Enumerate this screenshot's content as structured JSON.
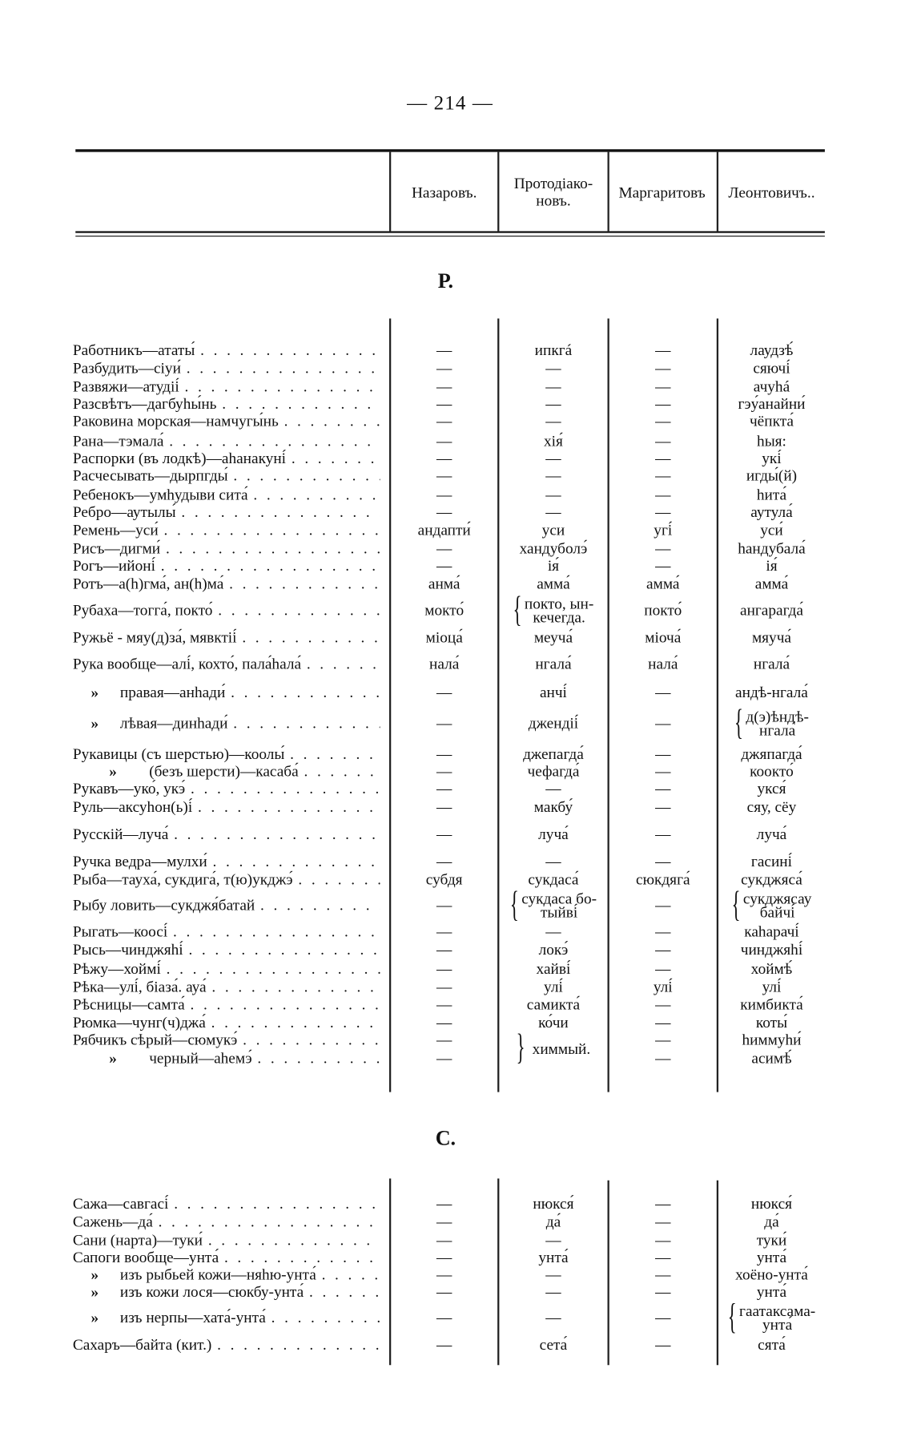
{
  "page_number": "— 214 —",
  "columns": [
    "Назаровъ.",
    "Протодіако-\nновъ.",
    "Маргаритовъ",
    "Леонтовичъ.."
  ],
  "sections": [
    {
      "letter": "Р.",
      "rows": [
        {
          "term": "Работникъ—ататы́",
          "cols": [
            "—",
            "ипкгá",
            "—",
            "лаудзѣ́"
          ]
        },
        {
          "term": "Разбудить—сіуи́",
          "cols": [
            "—",
            "—",
            "—",
            "сяючі́"
          ]
        },
        {
          "term": "Развяжи—атудіі́",
          "cols": [
            "—",
            "—",
            "—",
            "ачуhá"
          ]
        },
        {
          "term": "Разсвѣтъ—дагбуhы́нь",
          "cols": [
            "—",
            "—",
            "—",
            "гэу́анайни́"
          ]
        },
        {
          "term": "Раковина морская—намчугы́нь",
          "cols": [
            "—",
            "—",
            "—",
            "чёпкта́"
          ]
        },
        {
          "term": "Рана—тэмала́",
          "cols": [
            "—",
            "хія́",
            "—",
            "hыя:"
          ]
        },
        {
          "term": "Распорки (въ лодкѣ)—аhанакуні́",
          "cols": [
            "—",
            "—",
            "—",
            "укі́"
          ]
        },
        {
          "term": "Расчесывать—дырпгды́",
          "cols": [
            "—",
            "—",
            "—",
            "игды́(й)"
          ]
        },
        {
          "term": "Ребенокъ—умhудыви сита́",
          "cols": [
            "—",
            "—",
            "—",
            "hита́"
          ]
        },
        {
          "term": "Ребро—аутылы́",
          "cols": [
            "—",
            "—",
            "—",
            "аутула́"
          ]
        },
        {
          "term": "Ремень—уси́",
          "cols": [
            "андапти́",
            "уси",
            "угі́",
            "уси́"
          ]
        },
        {
          "term": "Рисъ—дигми́",
          "cols": [
            "—",
            "хандуболэ́",
            "—",
            "hандубала́"
          ]
        },
        {
          "term": "Рогъ—ийоні́",
          "cols": [
            "—",
            "ія́",
            "—",
            "ія́"
          ]
        },
        {
          "term": "Ротъ—а(h)гма́, ан(h)ма́",
          "cols": [
            "анма́",
            "амма́",
            "амма́",
            "амма́"
          ]
        },
        {
          "term": "Рубаха—тогга́, покто́",
          "cols": [
            "мокто́",
            {
              "brace": "{",
              "lines": [
                "покто, ын-",
                "кечегда."
              ]
            },
            "покто́",
            "ангарагда́"
          ]
        },
        {
          "term": "Ружьё - мяу(д)за́, мявктіі́",
          "cols": [
            "міоца́",
            "меуча́",
            "міоча́",
            "мяуча́"
          ]
        },
        {
          "term": "Рука вообще—алі́, кохто́, пала́hала́",
          "cols": [
            "нала́",
            "нгала́",
            "нала́",
            "нгала́"
          ]
        },
        {
          "ditto": "»",
          "kind": "sub",
          "term": "правая—анhади́",
          "cols": [
            "—",
            "анчі́",
            "—",
            "андѣ-нгала́"
          ]
        },
        {
          "ditto": "»",
          "kind": "sub",
          "term": "лѣвая—динhади́",
          "cols": [
            "—",
            "джендіі́",
            "—",
            {
              "brace": "{",
              "lines": [
                "д(э)ѣндѣ-",
                "нгала́"
              ]
            }
          ]
        },
        {
          "term": "Рукавицы (съ шерстью)—коолы́",
          "cols": [
            "—",
            "джепагда́",
            "—",
            "джяпагда́"
          ]
        },
        {
          "ditto": "»",
          "kind": "sub2",
          "term": "(безъ шерсти)—касаба́",
          "cols": [
            "—",
            "чефагда́",
            "—",
            "коокто́"
          ]
        },
        {
          "term": "Рукавъ—уко́, укэ́",
          "cols": [
            "—",
            "—",
            "—",
            "укся́"
          ]
        },
        {
          "term": "Руль—аксуhон(ь)і́",
          "cols": [
            "—",
            "макбу́",
            "—",
            "сяу, сёу"
          ]
        },
        {
          "term": "Русскій—луча́",
          "cols": [
            "—",
            "луча́",
            "—",
            "луча́"
          ]
        },
        {
          "term": "Ручка ведра—мулхи́",
          "cols": [
            "—",
            "—",
            "—",
            "гасині́"
          ]
        },
        {
          "term": "Рыба—тауха́, сукдига́, т(ю)укджэ́",
          "cols": [
            "субдя",
            "сукдаса́",
            "сюкдяга́",
            "сукджяса́"
          ]
        },
        {
          "term": "Рыбу ловить—сукджя́батай",
          "cols": [
            "—",
            {
              "brace": "{",
              "lines": [
                "сукдаса бо-",
                "тыйві́"
              ]
            },
            "—",
            {
              "brace": "{",
              "lines": [
                "сукджясау",
                "байчі́"
              ]
            }
          ]
        },
        {
          "term": "Рыгать—коосі́",
          "cols": [
            "—",
            "—",
            "—",
            "каhарачі́"
          ]
        },
        {
          "term": "Рысь—чинджяhі́",
          "cols": [
            "—",
            "локэ́",
            "—",
            "чинджяhі́"
          ]
        },
        {
          "term": "Рѣжу—хоймі́",
          "cols": [
            "—",
            "хайві́",
            "—",
            "хоймѣ́"
          ]
        },
        {
          "term": "Рѣка—улі́, біаза́. ауа́",
          "cols": [
            "—",
            "улі́",
            "улі́",
            "улі́"
          ]
        },
        {
          "term": "Рѣсницы—самта́",
          "cols": [
            "—",
            "самикта́",
            "—",
            "кимбикта́"
          ]
        },
        {
          "term": "Рюмка—чунг(ч)джа́",
          "cols": [
            "—",
            "ко́чи",
            "—",
            "коты́"
          ]
        },
        {
          "term": "Рябчикъ сѣрый—сюмукэ́",
          "cols": [
            "—",
            {
              "brace": "}",
              "lines": [
                "химмый."
              ],
              "span": 2
            },
            "—",
            "hиммуhи́"
          ]
        },
        {
          "ditto": "»",
          "kind": "sub2",
          "term": "черный—аhемэ́",
          "cols": [
            "—",
            null,
            "—",
            "асимѣ́"
          ]
        }
      ]
    },
    {
      "letter": "С.",
      "rows": [
        {
          "term": "Сажа—савгасі́",
          "cols": [
            "—",
            "нюкся́",
            "—",
            "нюкся́"
          ]
        },
        {
          "term": "Сажень—да́",
          "cols": [
            "—",
            "да́",
            "—",
            "да́"
          ]
        },
        {
          "term": "Сани (нарта)—туки́",
          "cols": [
            "—",
            "—",
            "—",
            "туки́"
          ]
        },
        {
          "term": "Сапоги вообще—унта́",
          "cols": [
            "—",
            "унта́",
            "—",
            "унта́"
          ]
        },
        {
          "ditto": "»",
          "kind": "sub",
          "term": "изъ рыбьей кожи—няhю-унта́",
          "cols": [
            "—",
            "—",
            "—",
            "хоёно-унта́"
          ]
        },
        {
          "ditto": "»",
          "kind": "sub",
          "term": "изъ кожи лося—сюкбу-унта́",
          "cols": [
            "—",
            "—",
            "—",
            "унта́"
          ]
        },
        {
          "ditto": "»",
          "kind": "sub",
          "term": "изъ нерпы—хата́-унта́",
          "cols": [
            "—",
            "—",
            "—",
            {
              "brace": "{",
              "lines": [
                "гаатаксама-",
                "унта́"
              ]
            }
          ]
        },
        {
          "term": "Сахаръ—байта (кит.)",
          "cols": [
            "—",
            "сета́",
            "—",
            "сята́"
          ]
        }
      ]
    }
  ]
}
